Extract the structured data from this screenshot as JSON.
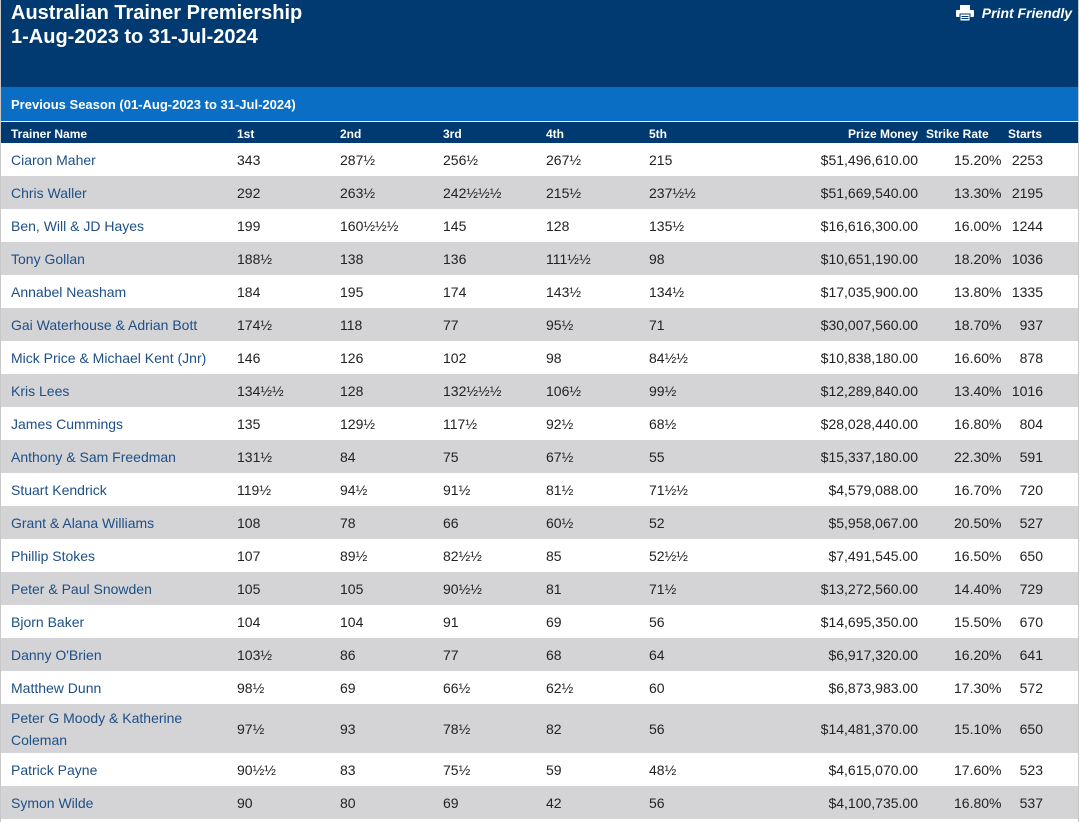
{
  "header": {
    "title_line1": "Australian Trainer Premiership",
    "title_line2": "1-Aug-2023 to 31-Jul-2024",
    "print_label": "Print Friendly",
    "print_icon": "printer-icon"
  },
  "season": {
    "label": "Previous Season (01-Aug-2023 to 31-Jul-2024)"
  },
  "colors": {
    "header_bg": "#003a70",
    "season_bg": "#0a6fc4",
    "alt_row": "#d4d4d6",
    "link": "#1e4f86"
  },
  "table": {
    "columns": [
      "Trainer Name",
      "1st",
      "2nd",
      "3rd",
      "4th",
      "5th",
      "Prize Money",
      "Strike Rate",
      "Starts"
    ],
    "rows": [
      [
        "Ciaron Maher",
        "343",
        "287½",
        "256½",
        "267½",
        "215",
        "$51,496,610.00",
        "15.20%",
        "2253"
      ],
      [
        "Chris Waller",
        "292",
        "263½",
        "242½½½",
        "215½",
        "237½½",
        "$51,669,540.00",
        "13.30%",
        "2195"
      ],
      [
        "Ben, Will & JD Hayes",
        "199",
        "160½½½",
        "145",
        "128",
        "135½",
        "$16,616,300.00",
        "16.00%",
        "1244"
      ],
      [
        "Tony Gollan",
        "188½",
        "138",
        "136",
        "111½½",
        "98",
        "$10,651,190.00",
        "18.20%",
        "1036"
      ],
      [
        "Annabel Neasham",
        "184",
        "195",
        "174",
        "143½",
        "134½",
        "$17,035,900.00",
        "13.80%",
        "1335"
      ],
      [
        "Gai Waterhouse & Adrian Bott",
        "174½",
        "118",
        "77",
        "95½",
        "71",
        "$30,007,560.00",
        "18.70%",
        "937"
      ],
      [
        "Mick Price & Michael Kent (Jnr)",
        "146",
        "126",
        "102",
        "98",
        "84½½",
        "$10,838,180.00",
        "16.60%",
        "878"
      ],
      [
        "Kris Lees",
        "134½½",
        "128",
        "132½½½",
        "106½",
        "99½",
        "$12,289,840.00",
        "13.40%",
        "1016"
      ],
      [
        "James Cummings",
        "135",
        "129½",
        "117½",
        "92½",
        "68½",
        "$28,028,440.00",
        "16.80%",
        "804"
      ],
      [
        "Anthony & Sam Freedman",
        "131½",
        "84",
        "75",
        "67½",
        "55",
        "$15,337,180.00",
        "22.30%",
        "591"
      ],
      [
        "Stuart Kendrick",
        "119½",
        "94½",
        "91½",
        "81½",
        "71½½",
        "$4,579,088.00",
        "16.70%",
        "720"
      ],
      [
        "Grant & Alana Williams",
        "108",
        "78",
        "66",
        "60½",
        "52",
        "$5,958,067.00",
        "20.50%",
        "527"
      ],
      [
        "Phillip Stokes",
        "107",
        "89½",
        "82½½",
        "85",
        "52½½",
        "$7,491,545.00",
        "16.50%",
        "650"
      ],
      [
        "Peter & Paul Snowden",
        "105",
        "105",
        "90½½",
        "81",
        "71½",
        "$13,272,560.00",
        "14.40%",
        "729"
      ],
      [
        "Bjorn Baker",
        "104",
        "104",
        "91",
        "69",
        "56",
        "$14,695,350.00",
        "15.50%",
        "670"
      ],
      [
        "Danny O'Brien",
        "103½",
        "86",
        "77",
        "68",
        "64",
        "$6,917,320.00",
        "16.20%",
        "641"
      ],
      [
        "Matthew Dunn",
        "98½",
        "69",
        "66½",
        "62½",
        "60",
        "$6,873,983.00",
        "17.30%",
        "572"
      ],
      [
        "Peter G Moody & Katherine Coleman",
        "97½",
        "93",
        "78½",
        "82",
        "56",
        "$14,481,370.00",
        "15.10%",
        "650"
      ],
      [
        "Patrick Payne",
        "90½½",
        "83",
        "75½",
        "59",
        "48½",
        "$4,615,070.00",
        "17.60%",
        "523"
      ],
      [
        "Symon Wilde",
        "90",
        "80",
        "69",
        "42",
        "56",
        "$4,100,735.00",
        "16.80%",
        "537"
      ]
    ]
  }
}
